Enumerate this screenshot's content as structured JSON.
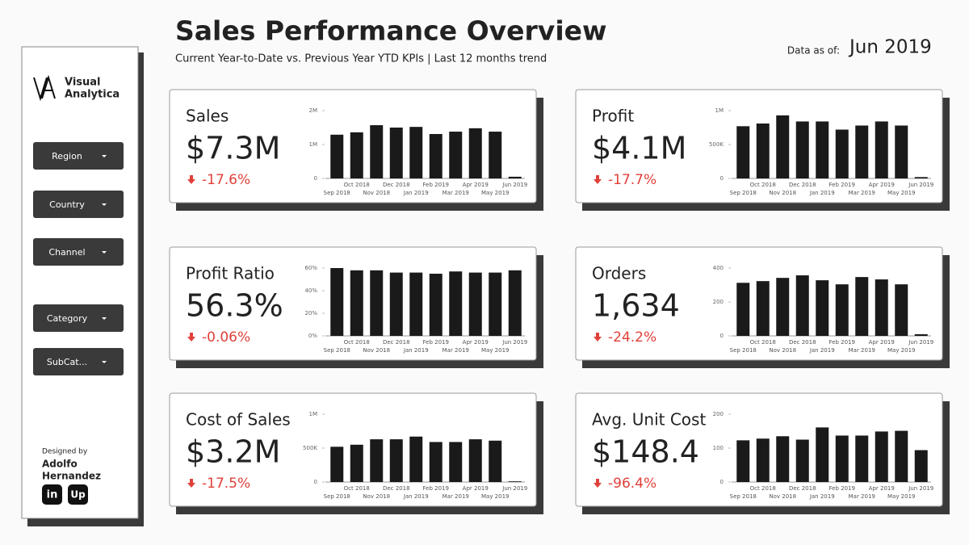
{
  "header": {
    "title": "Sales Performance Overview",
    "subtitle": "Current Year-to-Date vs. Previous Year YTD KPIs | Last 12 months trend",
    "data_as_of_label": "Data as of:",
    "data_as_of": "Jun 2019"
  },
  "sidebar": {
    "logo": [
      "Visual",
      "Analytica"
    ],
    "filters": [
      "Region",
      "Country",
      "Channel",
      "Category",
      "SubCat..."
    ],
    "credit_label": "Designed by",
    "author": [
      "Adolfo",
      "Hernandez"
    ],
    "icons": [
      "in",
      "Up"
    ]
  },
  "kpis": [
    {
      "label": "Sales",
      "value": "$7.3M",
      "change": "-17.6%"
    },
    {
      "label": "Profit",
      "value": "$4.1M",
      "change": "-17.7%"
    },
    {
      "label": "Profit Ratio",
      "value": "56.3%",
      "change": "-0.06%"
    },
    {
      "label": "Orders",
      "value": "1,634",
      "change": "-24.2%"
    },
    {
      "label": "Cost of Sales",
      "value": "$3.2M",
      "change": "-17.5%"
    },
    {
      "label": "Avg. Unit Cost",
      "value": "$148.4",
      "change": "-96.4%"
    }
  ],
  "chart_data": [
    {
      "type": "bar",
      "color": "#1a1a1a",
      "categories": [
        "Sep 2018",
        "Oct 2018",
        "Nov 2018",
        "Dec 2018",
        "Jan 2019",
        "Feb 2019",
        "Mar 2019",
        "Apr 2019",
        "May 2019",
        "Jun 2019"
      ],
      "values": [
        1290000,
        1360000,
        1570000,
        1500000,
        1520000,
        1310000,
        1380000,
        1480000,
        1380000,
        50000
      ],
      "ylim": [
        0,
        2000000
      ],
      "yticks": [
        0,
        {
          "value": 1000000,
          "label": "1M"
        },
        {
          "value": 2000000,
          "label": "2M"
        }
      ]
    },
    {
      "type": "bar",
      "color": "#1a1a1a",
      "categories": [
        "Sep 2018",
        "Oct 2018",
        "Nov 2018",
        "Dec 2018",
        "Jan 2019",
        "Feb 2019",
        "Mar 2019",
        "Apr 2019",
        "May 2019",
        "Jun 2019"
      ],
      "values": [
        770000,
        810000,
        930000,
        840000,
        840000,
        720000,
        780000,
        840000,
        780000,
        20000
      ],
      "ylim": [
        0,
        1000000
      ],
      "yticks": [
        0,
        {
          "value": 500000,
          "label": "500K"
        },
        {
          "value": 1000000,
          "label": "1M"
        }
      ]
    },
    {
      "type": "bar",
      "color": "#1a1a1a",
      "categories": [
        "Sep 2018",
        "Oct 2018",
        "Nov 2018",
        "Dec 2018",
        "Jan 2019",
        "Feb 2019",
        "Mar 2019",
        "Apr 2019",
        "May 2019",
        "Jun 2019"
      ],
      "values": [
        60,
        58,
        58,
        56,
        56,
        55,
        57,
        56,
        56,
        58
      ],
      "ylim": [
        0,
        60
      ],
      "yticks": [
        {
          "value": 0,
          "label": "0%"
        },
        {
          "value": 20,
          "label": "20%"
        },
        {
          "value": 40,
          "label": "40%"
        },
        {
          "value": 60,
          "label": "60%"
        }
      ]
    },
    {
      "type": "bar",
      "color": "#1a1a1a",
      "categories": [
        "Sep 2018",
        "Oct 2018",
        "Nov 2018",
        "Dec 2018",
        "Jan 2019",
        "Feb 2019",
        "Mar 2019",
        "Apr 2019",
        "May 2019",
        "Jun 2019"
      ],
      "values": [
        313,
        323,
        342,
        357,
        328,
        304,
        347,
        333,
        304,
        10
      ],
      "ylim": [
        0,
        400
      ],
      "yticks": [
        0,
        200,
        400
      ]
    },
    {
      "type": "bar",
      "color": "#1a1a1a",
      "categories": [
        "Sep 2018",
        "Oct 2018",
        "Nov 2018",
        "Dec 2018",
        "Jan 2019",
        "Feb 2019",
        "Mar 2019",
        "Apr 2019",
        "May 2019",
        "Jun 2019"
      ],
      "values": [
        520000,
        550000,
        630000,
        630000,
        670000,
        590000,
        590000,
        630000,
        610000,
        10000
      ],
      "ylim": [
        0,
        1000000
      ],
      "yticks": [
        0,
        {
          "value": 500000,
          "label": "500K"
        },
        {
          "value": 1000000,
          "label": "1M"
        }
      ]
    },
    {
      "type": "bar",
      "color": "#1a1a1a",
      "categories": [
        "Sep 2018",
        "Oct 2018",
        "Nov 2018",
        "Dec 2018",
        "Jan 2019",
        "Feb 2019",
        "Mar 2019",
        "Apr 2019",
        "May 2019",
        "Jun 2019"
      ],
      "values": [
        123,
        128,
        135,
        125,
        161,
        137,
        137,
        149,
        151,
        94
      ],
      "ylim": [
        0,
        200
      ],
      "yticks": [
        0,
        100,
        200
      ]
    }
  ]
}
